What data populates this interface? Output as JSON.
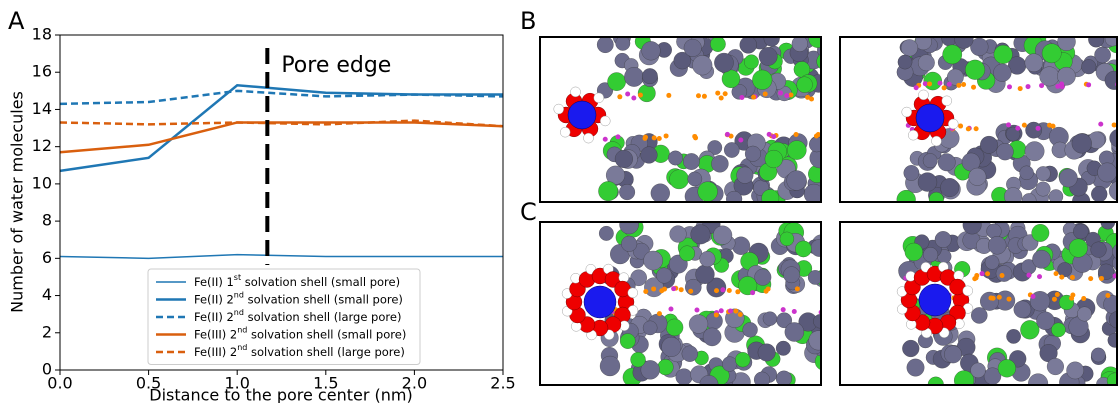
{
  "chart_data": {
    "type": "line",
    "panel_labels": [
      "A",
      "B",
      "C"
    ],
    "xlabel": "Distance to the pore center (nm)",
    "ylabel": "Number of water molecules",
    "x": [
      0,
      0.5,
      1.0,
      1.5,
      2.0,
      2.5
    ],
    "xlim": [
      0,
      2.5
    ],
    "xticks": [
      {
        "value": 0,
        "label": "0.0"
      },
      0.5,
      {
        "value": 1,
        "label": "1.0"
      },
      1.5,
      {
        "value": 2,
        "label": "2.0"
      },
      2.5
    ],
    "ylim": [
      0,
      18
    ],
    "yticks": [
      0,
      2,
      4,
      6,
      8,
      10,
      12,
      14,
      16,
      18
    ],
    "annotation": {
      "text": "Pore edge",
      "x": 1.17
    },
    "legend": "lower center",
    "series": [
      {
        "name": "Fe(II) 1st solvation shell (small pore)",
        "color": "#1f77b4",
        "linestyle": "solid",
        "linewidth": 1.5,
        "values": [
          6.1,
          6.0,
          6.2,
          6.1,
          6.1,
          6.1
        ]
      },
      {
        "name": "Fe(II) 2nd solvation shell (small pore)",
        "color": "#1f77b4",
        "linestyle": "solid",
        "linewidth": 2.5,
        "values": [
          10.7,
          11.4,
          15.3,
          14.9,
          14.8,
          14.8
        ]
      },
      {
        "name": "Fe(II) 2nd solvation shell (large pore)",
        "color": "#1f77b4",
        "linestyle": "dashed",
        "linewidth": 2.5,
        "values": [
          14.3,
          14.4,
          15.0,
          14.7,
          14.8,
          14.7
        ]
      },
      {
        "name": "Fe(III) 2nd solvation shell (small pore)",
        "color": "#d95f0e",
        "linestyle": "solid",
        "linewidth": 2.5,
        "values": [
          11.7,
          12.1,
          13.3,
          13.3,
          13.3,
          13.1
        ]
      },
      {
        "name": "Fe(III) 2nd solvation shell (large pore)",
        "color": "#d95f0e",
        "linestyle": "dashed",
        "linewidth": 2.5,
        "values": [
          13.3,
          13.2,
          13.3,
          13.2,
          13.4,
          13.1
        ]
      }
    ]
  }
}
